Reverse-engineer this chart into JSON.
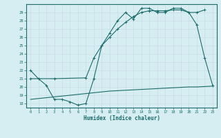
{
  "line1_x": [
    0,
    1,
    2,
    3,
    4,
    5,
    6,
    7,
    8,
    9,
    10,
    11,
    12,
    13,
    14,
    15,
    16,
    17,
    18,
    19,
    20,
    21,
    22,
    23
  ],
  "line1_y": [
    22,
    21,
    20.2,
    18.5,
    18.5,
    18.2,
    17.8,
    18,
    21,
    25,
    26.5,
    28,
    29,
    28.2,
    29.5,
    29.5,
    29,
    29,
    29.5,
    29.5,
    29,
    27.5,
    23.5,
    20.2
  ],
  "line2_x": [
    0,
    3,
    7,
    8,
    9,
    10,
    11,
    12,
    13,
    14,
    15,
    16,
    17,
    18,
    19,
    20,
    21,
    22
  ],
  "line2_y": [
    21,
    21,
    21.1,
    23.5,
    25.0,
    26.0,
    27.0,
    27.8,
    28.5,
    29.0,
    29.2,
    29.2,
    29.2,
    29.3,
    29.3,
    29.0,
    29.0,
    29.3
  ],
  "line3_x": [
    0,
    1,
    2,
    3,
    4,
    5,
    6,
    7,
    8,
    9,
    10,
    11,
    12,
    13,
    14,
    15,
    16,
    17,
    18,
    19,
    20,
    21,
    22,
    23
  ],
  "line3_y": [
    18.5,
    18.6,
    18.7,
    18.8,
    18.9,
    19.0,
    19.1,
    19.2,
    19.3,
    19.4,
    19.5,
    19.55,
    19.6,
    19.65,
    19.7,
    19.75,
    19.8,
    19.85,
    19.9,
    19.95,
    20.0,
    20.0,
    20.05,
    20.1
  ],
  "line_color": "#1a6b6b",
  "markersize": 2.5,
  "bg_color": "#d6eef2",
  "grid_color": "#b8d9e0",
  "xlabel": "Humidex (Indice chaleur)",
  "ylabel_ticks": [
    18,
    19,
    20,
    21,
    22,
    23,
    24,
    25,
    26,
    27,
    28,
    29
  ],
  "xticks": [
    0,
    1,
    2,
    3,
    4,
    5,
    6,
    7,
    8,
    9,
    10,
    11,
    12,
    13,
    14,
    15,
    16,
    17,
    18,
    19,
    20,
    21,
    22,
    23
  ],
  "ylim": [
    17.5,
    30.0
  ],
  "xlim": [
    -0.5,
    23.5
  ],
  "figsize": [
    3.2,
    2.0
  ],
  "dpi": 100
}
